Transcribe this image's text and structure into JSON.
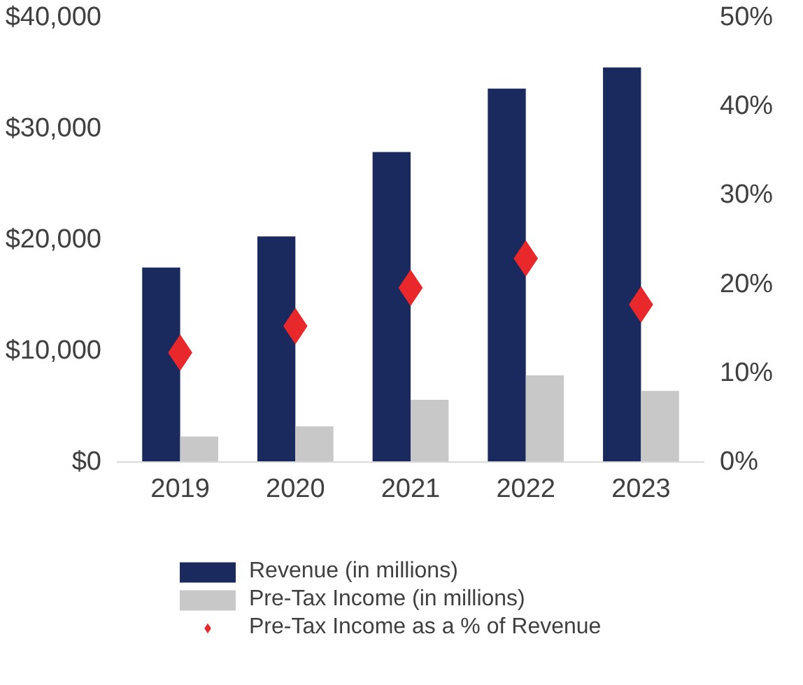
{
  "chart_data": {
    "type": "bar",
    "categories": [
      "2019",
      "2020",
      "2021",
      "2022",
      "2023"
    ],
    "series": [
      {
        "name": "Revenue (in millions)",
        "color": "#1b2a5e",
        "values": [
          17500,
          20300,
          27900,
          33600,
          35500
        ]
      },
      {
        "name": "Pre-Tax Income (in millions)",
        "color": "#c8c8c8",
        "values": [
          2300,
          3200,
          5600,
          7800,
          6400
        ]
      },
      {
        "name": "Pre-Tax Income as a % of Revenue",
        "color": "#e8282b",
        "type": "scatter",
        "axis": "y2",
        "values": [
          12.3,
          15.3,
          19.6,
          22.9,
          17.7
        ]
      }
    ],
    "ylim": [
      0,
      40000
    ],
    "yticks": [
      {
        "value": 0,
        "label": "$0"
      },
      {
        "value": 10000,
        "label": "$10,000"
      },
      {
        "value": 20000,
        "label": "$20,000"
      },
      {
        "value": 30000,
        "label": "$30,000"
      },
      {
        "value": 40000,
        "label": "$40,000"
      }
    ],
    "y2lim": [
      0,
      50
    ],
    "y2ticks": [
      {
        "value": 0,
        "label": "0%"
      },
      {
        "value": 10,
        "label": "10%"
      },
      {
        "value": 20,
        "label": "20%"
      },
      {
        "value": 30,
        "label": "30%"
      },
      {
        "value": 40,
        "label": "40%"
      },
      {
        "value": 50,
        "label": "50%"
      }
    ],
    "marker": "diamond",
    "grid": false,
    "legend": "bottom"
  }
}
